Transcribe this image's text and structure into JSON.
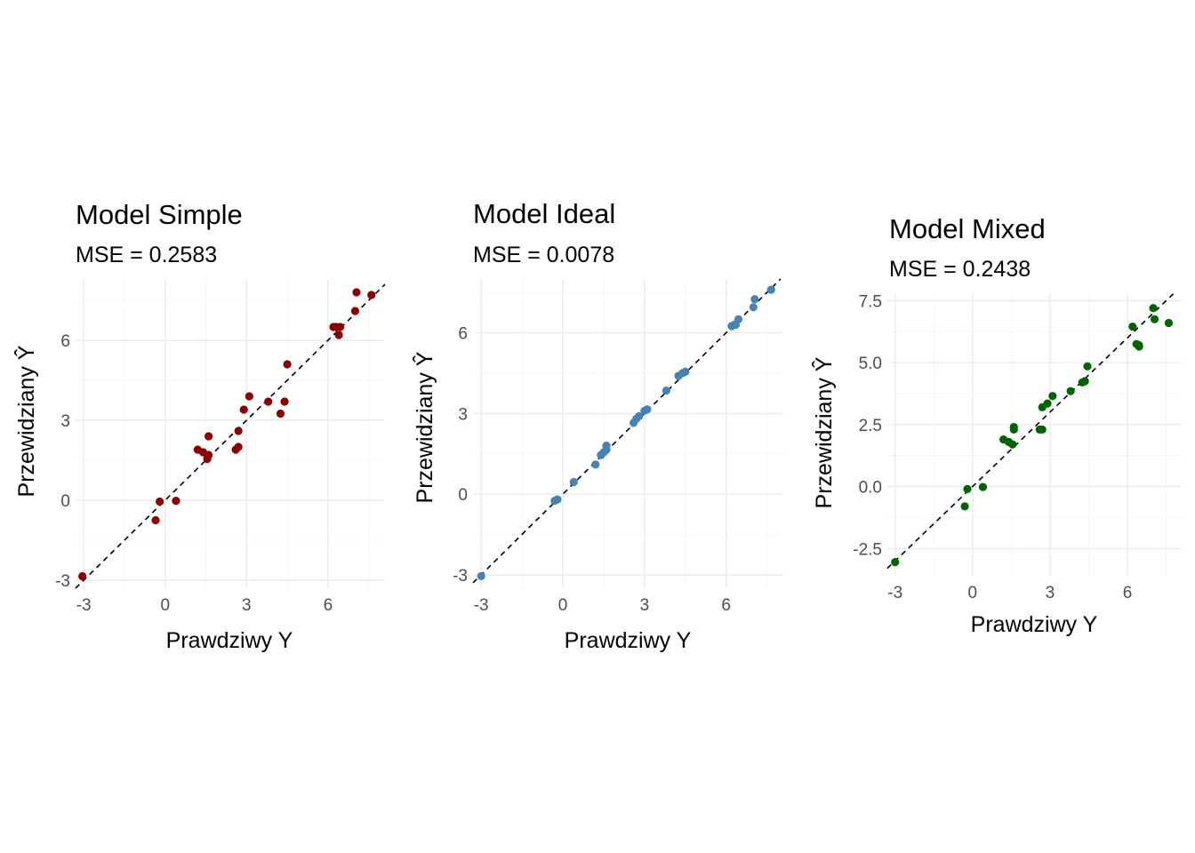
{
  "chart_data": [
    {
      "type": "scatter",
      "title": "Model Simple",
      "subtitle": "MSE = 0.2583",
      "xlabel": "Prawdziwy Y",
      "ylabel": "Przewidziany Ŷ",
      "color": "#8b0000",
      "xlim": [
        -3.3,
        8.1
      ],
      "ylim": [
        -3.3,
        8.3
      ],
      "xticks": [
        -3,
        0,
        3,
        6
      ],
      "xtick_labels": [
        "-3",
        "0",
        "3",
        "6"
      ],
      "yticks": [
        -3,
        0,
        3,
        6
      ],
      "ytick_labels": [
        "-3",
        "0",
        "3",
        "6"
      ],
      "grid": true,
      "reference_line": "y = x (dashed)",
      "points": [
        [
          -3.05,
          -2.85
        ],
        [
          -0.35,
          -0.75
        ],
        [
          -0.2,
          -0.05
        ],
        [
          0.4,
          -0.02
        ],
        [
          1.2,
          1.9
        ],
        [
          1.4,
          1.8
        ],
        [
          1.55,
          1.55
        ],
        [
          1.6,
          2.4
        ],
        [
          1.6,
          1.7
        ],
        [
          2.6,
          1.9
        ],
        [
          2.7,
          2.0
        ],
        [
          2.7,
          2.6
        ],
        [
          2.9,
          3.4
        ],
        [
          3.1,
          3.9
        ],
        [
          3.8,
          3.7
        ],
        [
          4.25,
          3.25
        ],
        [
          4.4,
          3.7
        ],
        [
          4.5,
          5.1
        ],
        [
          6.2,
          6.5
        ],
        [
          6.3,
          6.5
        ],
        [
          6.4,
          6.2
        ],
        [
          6.45,
          6.5
        ],
        [
          7.0,
          7.1
        ],
        [
          7.05,
          7.8
        ],
        [
          7.6,
          7.7
        ]
      ]
    },
    {
      "type": "scatter",
      "title": "Model Ideal",
      "subtitle": "MSE = 0.0078",
      "xlabel": "Prawdziwy Y",
      "ylabel": "Przewidziany Ŷ",
      "color": "#4682b4",
      "xlim": [
        -3.3,
        8.1
      ],
      "ylim": [
        -3.5,
        8.0
      ],
      "xticks": [
        -3,
        0,
        3,
        6
      ],
      "xtick_labels": [
        "-3",
        "0",
        "3",
        "6"
      ],
      "yticks": [
        -3,
        0,
        3,
        6
      ],
      "ytick_labels": [
        "-3",
        "0",
        "3",
        "6"
      ],
      "grid": true,
      "reference_line": "y = x (dashed)",
      "points": [
        [
          -3.0,
          -3.05
        ],
        [
          -0.3,
          -0.25
        ],
        [
          -0.2,
          -0.2
        ],
        [
          0.4,
          0.45
        ],
        [
          1.2,
          1.1
        ],
        [
          1.4,
          1.45
        ],
        [
          1.5,
          1.55
        ],
        [
          1.6,
          1.65
        ],
        [
          1.6,
          1.8
        ],
        [
          2.6,
          2.65
        ],
        [
          2.7,
          2.8
        ],
        [
          2.8,
          2.9
        ],
        [
          3.0,
          3.1
        ],
        [
          3.1,
          3.15
        ],
        [
          3.8,
          3.85
        ],
        [
          4.25,
          4.4
        ],
        [
          4.4,
          4.5
        ],
        [
          4.5,
          4.55
        ],
        [
          6.2,
          6.25
        ],
        [
          6.3,
          6.3
        ],
        [
          6.35,
          6.3
        ],
        [
          6.45,
          6.5
        ],
        [
          7.0,
          6.95
        ],
        [
          7.05,
          7.25
        ],
        [
          7.65,
          7.6
        ]
      ]
    },
    {
      "type": "scatter",
      "title": "Model Mixed",
      "subtitle": "MSE = 0.2438",
      "xlabel": "Prawdziwy Y",
      "ylabel": "Przewidziany Ŷ",
      "color": "#006400",
      "xlim": [
        -3.3,
        8.1
      ],
      "ylim": [
        -3.6,
        7.8
      ],
      "xticks": [
        -3,
        0,
        3,
        6
      ],
      "xtick_labels": [
        "-3",
        "0",
        "3",
        "6"
      ],
      "yticks": [
        -2.5,
        0,
        2.5,
        5,
        7.5
      ],
      "ytick_labels": [
        "-2.5",
        "0.0",
        "2.5",
        "5.0",
        "7.5"
      ],
      "grid": true,
      "reference_line": "y = x (dashed)",
      "points": [
        [
          -3.0,
          -3.05
        ],
        [
          -0.3,
          -0.8
        ],
        [
          -0.2,
          -0.1
        ],
        [
          0.4,
          -0.02
        ],
        [
          1.2,
          1.9
        ],
        [
          1.4,
          1.8
        ],
        [
          1.55,
          1.7
        ],
        [
          1.6,
          2.3
        ],
        [
          1.6,
          2.4
        ],
        [
          2.6,
          2.3
        ],
        [
          2.7,
          2.3
        ],
        [
          2.7,
          3.2
        ],
        [
          2.9,
          3.35
        ],
        [
          3.1,
          3.65
        ],
        [
          3.8,
          3.85
        ],
        [
          4.25,
          4.2
        ],
        [
          4.35,
          4.25
        ],
        [
          4.45,
          4.85
        ],
        [
          6.2,
          6.45
        ],
        [
          6.35,
          5.75
        ],
        [
          6.45,
          5.65
        ],
        [
          6.45,
          5.7
        ],
        [
          7.0,
          7.2
        ],
        [
          7.05,
          6.75
        ],
        [
          7.6,
          6.6
        ]
      ]
    }
  ]
}
